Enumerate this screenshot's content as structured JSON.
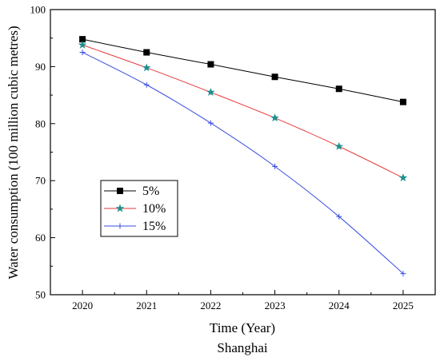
{
  "chart_data": {
    "type": "line",
    "x": [
      2020,
      2021,
      2022,
      2023,
      2024,
      2025
    ],
    "xlabel": "Time (Year)",
    "ylabel": "Water consumption (100 million cubic metres)",
    "caption": "Shanghai",
    "xlim": [
      2019.5,
      2025.5
    ],
    "ylim": [
      50,
      100
    ],
    "yticks": [
      50,
      60,
      70,
      80,
      90,
      100
    ],
    "grid": false,
    "legend_position": "center-left",
    "series": [
      {
        "name": "5%",
        "marker": "square",
        "color": "#000000",
        "values": [
          94.8,
          92.5,
          90.4,
          88.2,
          86.1,
          83.8
        ]
      },
      {
        "name": "10%",
        "marker": "star",
        "color": "#e83a3a",
        "marker_color": "#1f8f8f",
        "values": [
          93.8,
          89.8,
          85.5,
          81.0,
          76.0,
          70.5
        ]
      },
      {
        "name": "15%",
        "marker": "plus",
        "color": "#3b4fe0",
        "values": [
          92.5,
          86.8,
          80.1,
          72.5,
          63.7,
          53.7
        ]
      }
    ]
  }
}
